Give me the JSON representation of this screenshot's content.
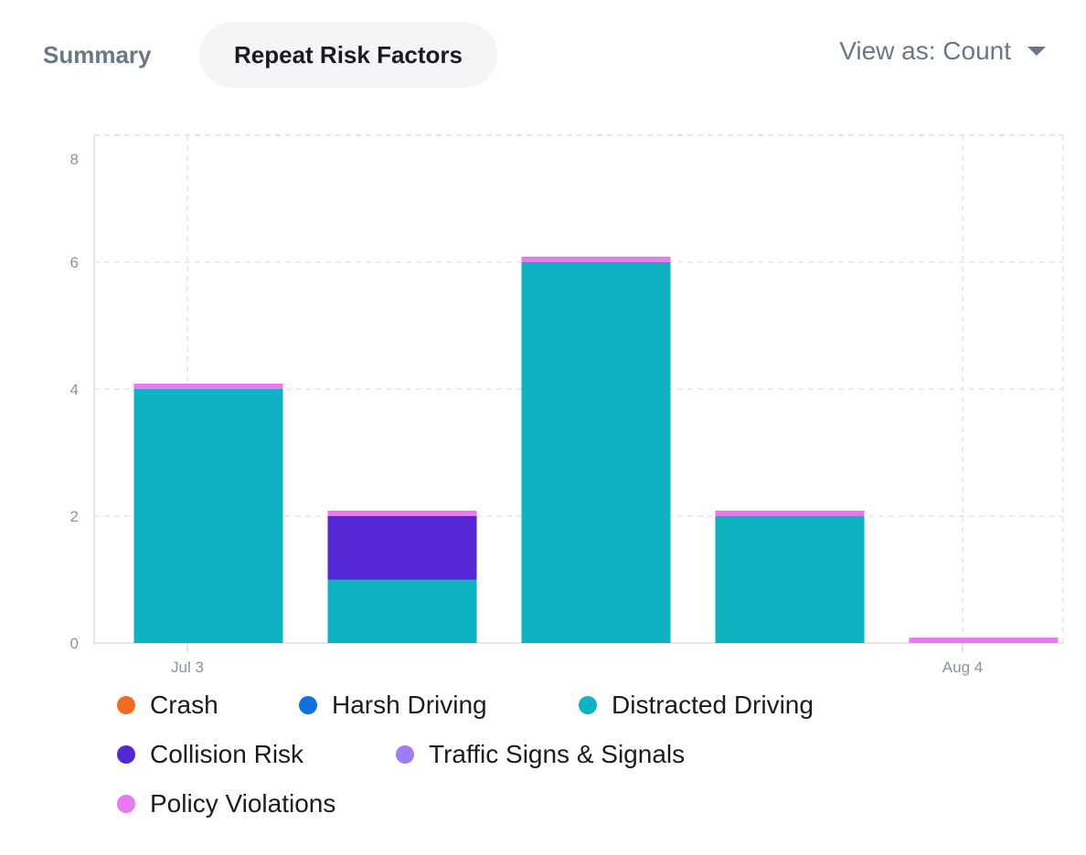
{
  "tabs": [
    {
      "label": "Summary",
      "active": false
    },
    {
      "label": "Repeat Risk Factors",
      "active": true
    }
  ],
  "view_as": {
    "label": "View as: Count"
  },
  "chart_data": {
    "type": "bar",
    "stacked": true,
    "categories": [
      "Jul 3",
      "",
      "",
      "",
      "Aug 4"
    ],
    "x_tick_labels": [
      "Jul 3",
      "Aug 4"
    ],
    "y_ticks": [
      0,
      2,
      4,
      6,
      8
    ],
    "ylim": [
      0,
      8
    ],
    "grid": true,
    "legend_placement": "bottom",
    "series": [
      {
        "name": "Crash",
        "color": "#f26b21",
        "values": [
          0,
          0,
          0,
          0,
          0
        ]
      },
      {
        "name": "Harsh Driving",
        "color": "#1370e3",
        "values": [
          0,
          0,
          0,
          0,
          0
        ]
      },
      {
        "name": "Distracted Driving",
        "color": "#0eb3c2",
        "values": [
          4,
          1,
          6,
          2,
          0
        ]
      },
      {
        "name": "Collision Risk",
        "color": "#5426d4",
        "values": [
          0,
          1,
          0,
          0,
          0
        ]
      },
      {
        "name": "Traffic Signs & Signals",
        "color": "#a07cf0",
        "values": [
          0,
          0,
          0,
          0,
          0
        ]
      },
      {
        "name": "Policy Violations",
        "color": "#e879f0",
        "values": [
          0,
          0,
          0,
          0,
          0
        ]
      }
    ]
  }
}
